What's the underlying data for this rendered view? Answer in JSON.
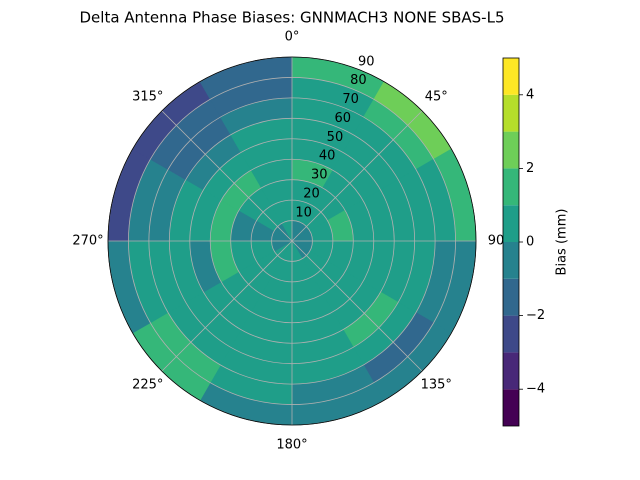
{
  "chart_data": {
    "type": "polar_contour",
    "title": "Delta Antenna Phase Biases: GNNMACH3        NONE SBAS-L5",
    "theta_edges": [
      0,
      30,
      60,
      90,
      120,
      150,
      180,
      210,
      240,
      270,
      300,
      330,
      360
    ],
    "r_edges": [
      0,
      10,
      20,
      30,
      40,
      50,
      60,
      70,
      80,
      90
    ],
    "values": [
      [
        -0.5,
        0.5,
        0.5,
        1.5,
        0.5,
        0.5,
        0.5,
        0.5,
        1.5
      ],
      [
        -0.5,
        0.5,
        0.5,
        0.5,
        0.5,
        0.5,
        0.5,
        1.5,
        2.5
      ],
      [
        -0.5,
        0.5,
        1.5,
        0.5,
        0.5,
        0.5,
        0.5,
        0.5,
        1.5
      ],
      [
        -0.5,
        0.5,
        0.5,
        0.5,
        0.5,
        0.5,
        0.5,
        -0.5,
        -0.5
      ],
      [
        -0.5,
        0.5,
        0.5,
        0.5,
        0.5,
        1.5,
        0.5,
        -1.5,
        -0.5
      ],
      [
        0.5,
        0.5,
        0.5,
        0.5,
        0.5,
        0.5,
        0.5,
        -0.5,
        -0.5
      ],
      [
        0.5,
        0.5,
        0.5,
        0.5,
        0.5,
        0.5,
        0.5,
        0.5,
        -0.5
      ],
      [
        0.5,
        0.5,
        0.5,
        0.5,
        0.5,
        0.5,
        0.5,
        1.5,
        1.5
      ],
      [
        -0.5,
        0.5,
        0.5,
        1.5,
        -0.5,
        0.5,
        0.5,
        0.5,
        -0.5
      ],
      [
        -0.5,
        -0.5,
        -0.5,
        1.5,
        0.5,
        0.5,
        -0.5,
        -0.5,
        -2.5
      ],
      [
        -0.5,
        0.5,
        0.5,
        1.5,
        0.5,
        -0.5,
        -1.5,
        -1.5,
        -2.5
      ],
      [
        0.5,
        0.5,
        0.5,
        0.5,
        0.5,
        0.5,
        -0.5,
        -1.5,
        -1.5
      ]
    ],
    "rlim": [
      0,
      90
    ],
    "rticks": [
      10,
      20,
      30,
      40,
      50,
      60,
      70,
      80,
      90
    ],
    "thetaticks": [
      {
        "value": 0,
        "label": "0°"
      },
      {
        "value": 45,
        "label": "45°"
      },
      {
        "value": 90,
        "label": "90"
      },
      {
        "value": 135,
        "label": "135°"
      },
      {
        "value": 180,
        "label": "180°"
      },
      {
        "value": 225,
        "label": "225°"
      },
      {
        "value": 270,
        "label": "270°"
      },
      {
        "value": 315,
        "label": "315°"
      }
    ],
    "levels": [
      -5,
      -4,
      -3,
      -2,
      -1,
      0,
      1,
      2,
      3,
      4,
      5
    ],
    "colors": [
      "#440154",
      "#482878",
      "#3e4989",
      "#31688e",
      "#26828e",
      "#1f9e89",
      "#35b779",
      "#6ece58",
      "#b5de2b",
      "#fde725"
    ],
    "colorbar_label": "Bias (mm)",
    "colorbar_ticks": [
      {
        "value": -4,
        "label": "−4"
      },
      {
        "value": -2,
        "label": "−2"
      },
      {
        "value": 0,
        "label": "0"
      },
      {
        "value": 2,
        "label": "2"
      },
      {
        "value": 4,
        "label": "4"
      }
    ],
    "grid": true
  }
}
